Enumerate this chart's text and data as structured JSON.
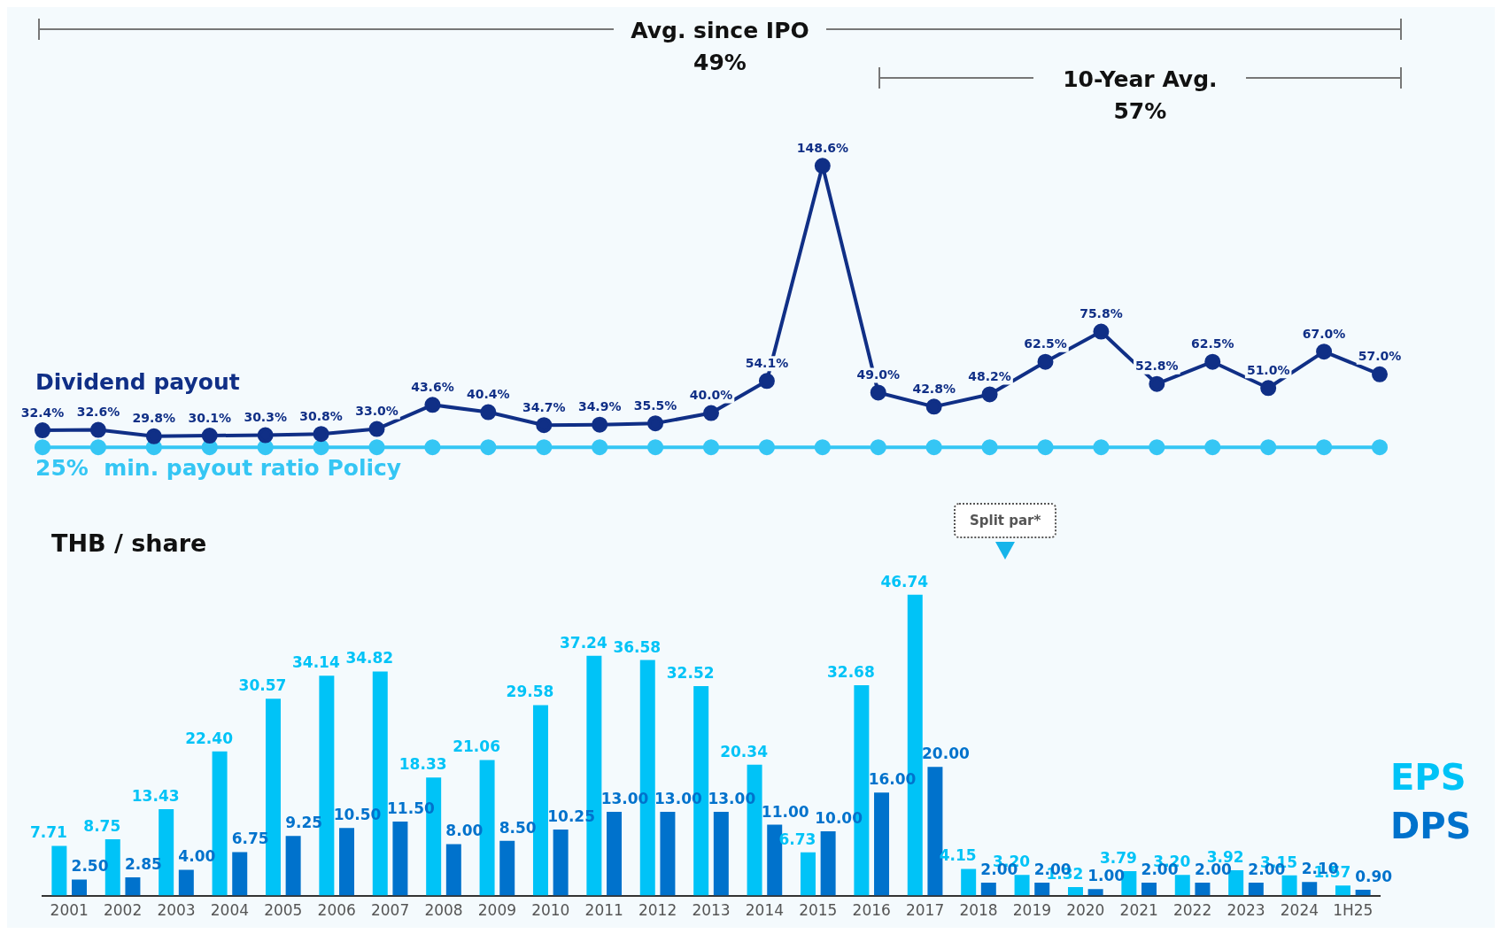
{
  "chart_data": [
    {
      "type": "line",
      "legend": false,
      "grid": false,
      "tick_labels": false,
      "marker": "circle",
      "categories": [
        null,
        null,
        null,
        null,
        null,
        null,
        null,
        null,
        null,
        null,
        null,
        null,
        null,
        null,
        null,
        null,
        null,
        null,
        null,
        null,
        null,
        null,
        null,
        null,
        null
      ],
      "annotations": [
        "Avg. since IPO\n49%",
        "10-Year Avg.\n57%"
      ],
      "series": [
        {
          "name": "Dividend payout",
          "color": "#102f86",
          "values": [
            32.4,
            32.6,
            29.8,
            30.1,
            30.3,
            30.8,
            33.0,
            43.6,
            40.4,
            34.7,
            34.9,
            35.5,
            40.0,
            54.1,
            148.6,
            49.0,
            42.8,
            48.2,
            62.5,
            75.8,
            52.8,
            62.5,
            51.0,
            67.0,
            57.0
          ],
          "value_labels": [
            "32.4%",
            "32.6%",
            "29.8%",
            "30.1%",
            "30.3%",
            "30.8%",
            "33.0%",
            "43.6%",
            "40.4%",
            "34.7%",
            "34.9%",
            "35.5%",
            "40.0%",
            "54.1%",
            "148.6%",
            "49.0%",
            "42.8%",
            "48.2%",
            "62.5%",
            "75.8%",
            "52.8%",
            "62.5%",
            "51.0%",
            "67.0%",
            "57.0%"
          ]
        },
        {
          "name": "25%  min. payout ratio Policy",
          "color": "#35c6f4",
          "values": [
            25,
            25,
            25,
            25,
            25,
            25,
            25,
            25,
            25,
            25,
            25,
            25,
            25,
            25,
            25,
            25,
            25,
            25,
            25,
            25,
            25,
            25,
            25,
            25,
            25
          ]
        }
      ]
    },
    {
      "type": "bar",
      "ylabel": "THB / share",
      "legend": false,
      "grid": false,
      "tick_labels": "x",
      "categories": [
        "2001",
        "2002",
        "2003",
        "2004",
        "2005",
        "2006",
        "2007",
        "2008",
        "2009",
        "2010",
        "2011",
        "2012",
        "2013",
        "2014",
        "2015",
        "2016",
        "2017",
        "2018",
        "2019",
        "2020",
        "2021",
        "2022",
        "2023",
        "2024",
        "1H25"
      ],
      "annotations": [
        "Split par*"
      ],
      "series": [
        {
          "name": "EPS",
          "color": "#00c3f7",
          "values": [
            7.71,
            8.75,
            13.43,
            22.4,
            30.57,
            34.14,
            34.82,
            18.33,
            21.06,
            29.58,
            37.24,
            36.58,
            32.52,
            20.34,
            6.73,
            32.68,
            46.74,
            4.15,
            3.2,
            1.32,
            3.79,
            3.2,
            3.92,
            3.15,
            1.57
          ],
          "value_labels": [
            "7.71",
            "8.75",
            "13.43",
            "22.40",
            "30.57",
            "34.14",
            "34.82",
            "18.33",
            "21.06",
            "29.58",
            "37.24",
            "36.58",
            "32.52",
            "20.34",
            "6.73",
            "32.68",
            "46.74",
            "4.15",
            "3.20",
            "1.32",
            "3.79",
            "3.20",
            "3.92",
            "3.15",
            "1.57"
          ]
        },
        {
          "name": "DPS",
          "color": "#0072cc",
          "values": [
            2.5,
            2.85,
            4.0,
            6.75,
            9.25,
            10.5,
            11.5,
            8.0,
            8.5,
            10.25,
            13.0,
            13.0,
            13.0,
            11.0,
            10.0,
            16.0,
            20.0,
            2.0,
            2.0,
            1.0,
            2.0,
            2.0,
            2.0,
            2.1,
            0.9
          ],
          "value_labels": [
            "2.50",
            "2.85",
            "4.00",
            "6.75",
            "9.25",
            "10.50",
            "11.50",
            "8.00",
            "8.50",
            "10.25",
            "13.00",
            "13.00",
            "13.00",
            "11.00",
            "10.00",
            "16.00",
            "20.00",
            "2.00",
            "2.00",
            "1.00",
            "2.00",
            "2.00",
            "2.00",
            "2.10",
            "0.90"
          ]
        }
      ]
    }
  ]
}
